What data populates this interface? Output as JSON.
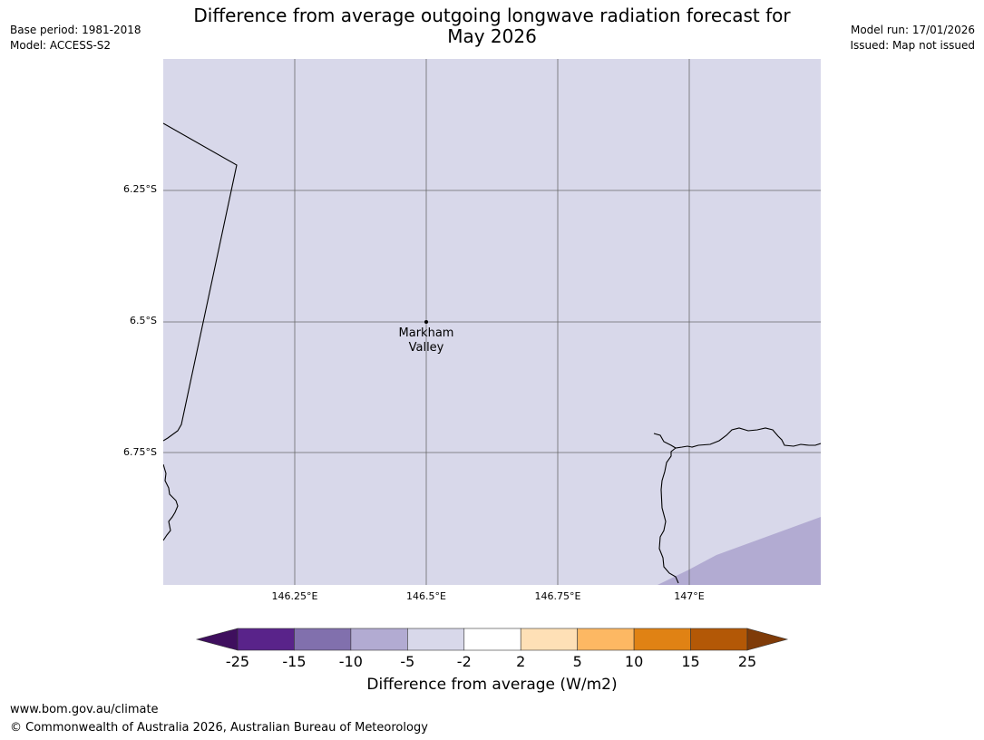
{
  "title_line1": "Difference from average outgoing longwave radiation forecast for",
  "title_line2": "May 2026",
  "header_left": {
    "base_period": "Base period: 1981-2018",
    "model": "Model: ACCESS-S2"
  },
  "header_right": {
    "model_run": "Model run: 17/01/2026",
    "issued": "Issued: Map not issued"
  },
  "map": {
    "latitude_labels": [
      "6.25°S",
      "6.5°S",
      "6.75°S"
    ],
    "longitude_labels": [
      "146.25°E",
      "146.5°E",
      "146.75°E",
      "147°E"
    ],
    "place": {
      "name": "Markham Valley",
      "line1": "Markham",
      "line2": "Valley"
    },
    "background_color": "#d8d8ea",
    "anomaly_patch_color": "#b2abd2"
  },
  "colorbar": {
    "ticks": [
      "-25",
      "-15",
      "-10",
      "-5",
      "-2",
      "2",
      "5",
      "10",
      "15",
      "25"
    ],
    "colors": [
      "#3f0f5e",
      "#59238a",
      "#8170ad",
      "#b2abd2",
      "#d8d8ea",
      "#ffffff",
      "#fee0b6",
      "#fdb863",
      "#e08214",
      "#b35806",
      "#7f3b08"
    ],
    "label": "Difference from average (W/m2)"
  },
  "footer": {
    "url": "www.bom.gov.au/climate",
    "copyright": "© Commonwealth of Australia 2026, Australian Bureau of Meteorology"
  }
}
